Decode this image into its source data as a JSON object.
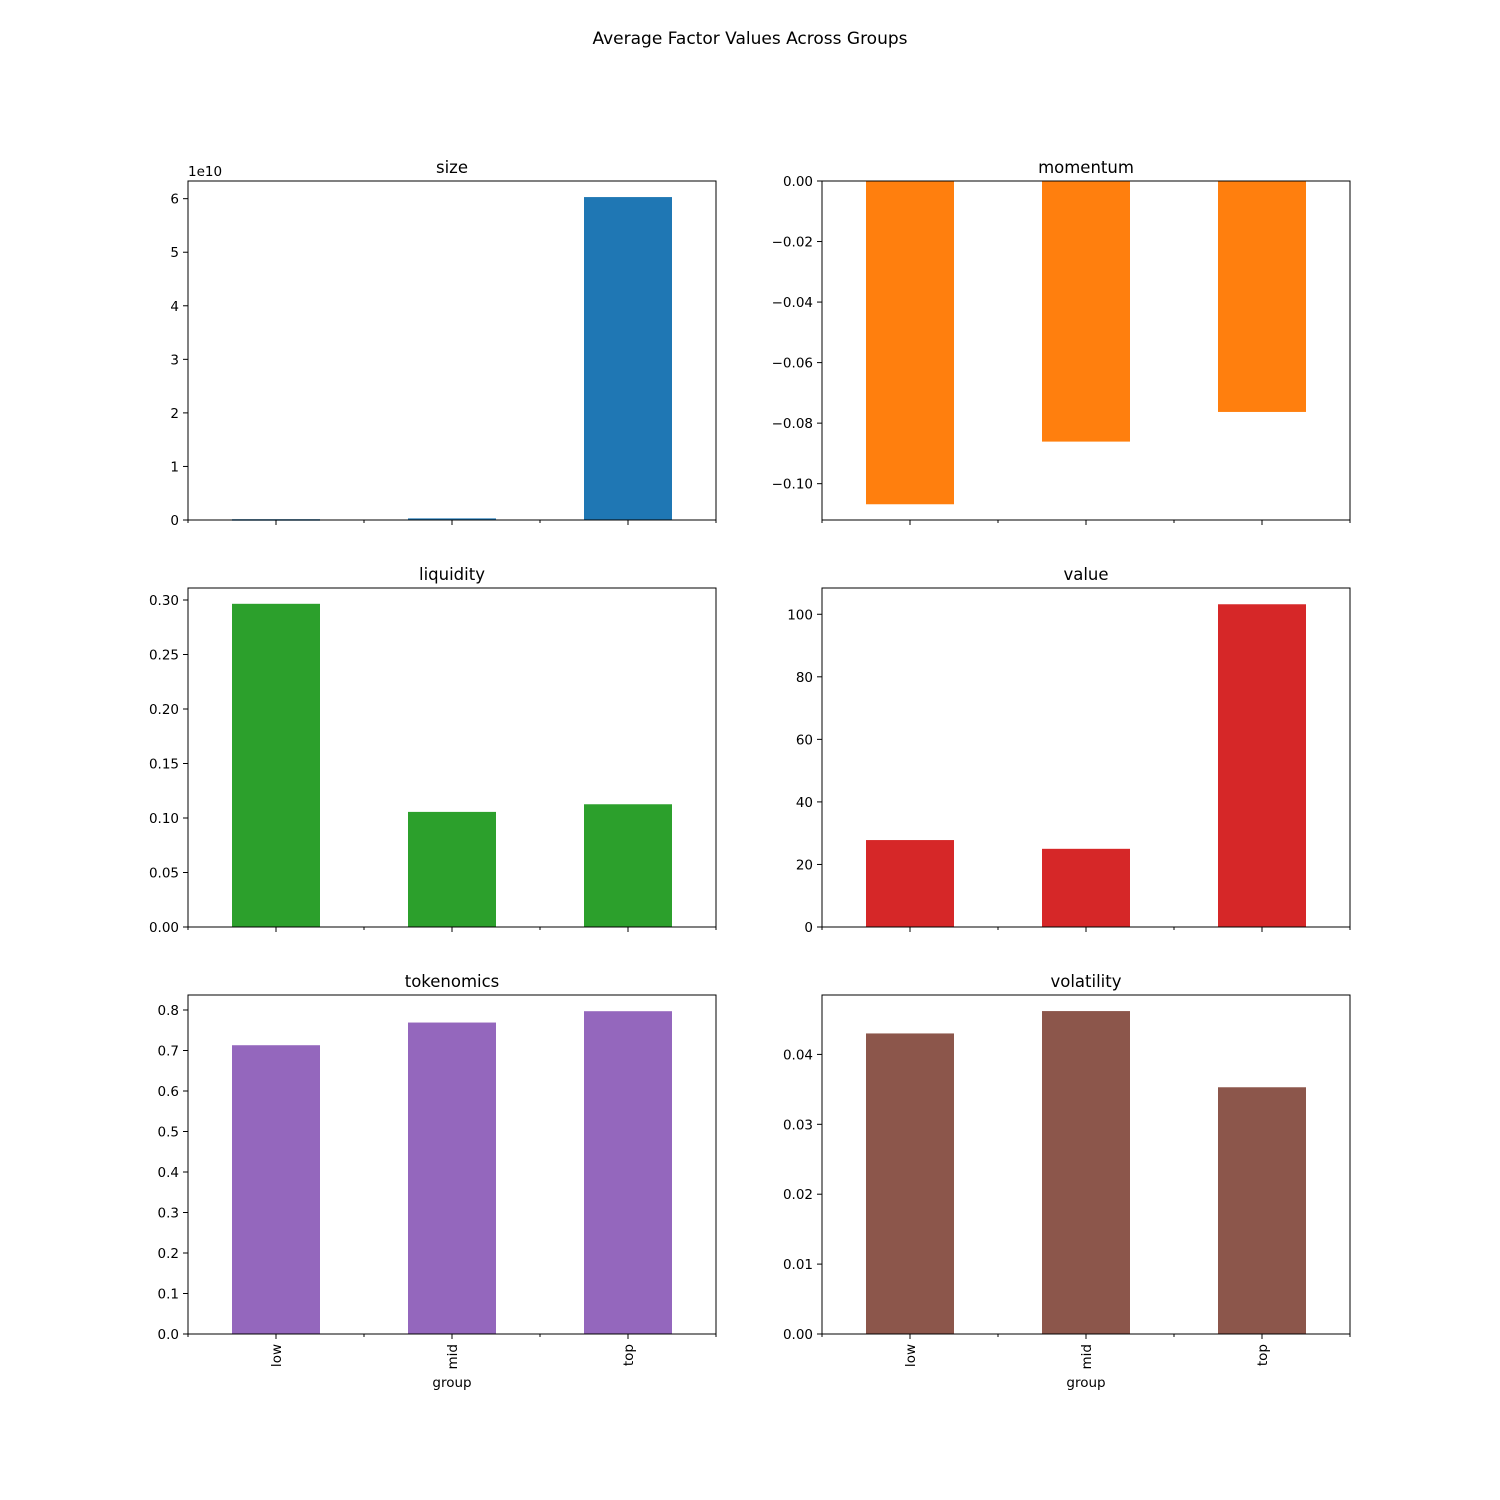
{
  "figure": {
    "title": "Average Factor Values Across Groups",
    "categories": [
      "low",
      "mid",
      "top"
    ],
    "xlabel": "group"
  },
  "chart_data": [
    {
      "type": "bar",
      "title": "size",
      "categories": [
        "low",
        "mid",
        "top"
      ],
      "values": [
        150000000,
        300000000,
        60300000000
      ],
      "ylim": [
        0,
        63300000000
      ],
      "yticks": [
        0,
        10000000000,
        20000000000,
        30000000000,
        40000000000,
        50000000000,
        60000000000
      ],
      "yticklabels": [
        "0",
        "1",
        "2",
        "3",
        "4",
        "5",
        "6"
      ],
      "offset_label": "1e10",
      "xlabel": "",
      "color": "#1f77b4",
      "grid": false
    },
    {
      "type": "bar",
      "title": "momentum",
      "categories": [
        "low",
        "mid",
        "top"
      ],
      "values": [
        -0.1068,
        -0.0861,
        -0.0763
      ],
      "ylim": [
        -0.112,
        0
      ],
      "yticks": [
        -0.1,
        -0.08,
        -0.06,
        -0.04,
        -0.02,
        0.0
      ],
      "yticklabels": [
        "−0.10",
        "−0.08",
        "−0.06",
        "−0.04",
        "−0.02",
        "0.00"
      ],
      "xlabel": "",
      "color": "#ff7f0e",
      "grid": false
    },
    {
      "type": "bar",
      "title": "liquidity",
      "categories": [
        "low",
        "mid",
        "top"
      ],
      "values": [
        0.2965,
        0.1056,
        0.1126
      ],
      "ylim": [
        0,
        0.311
      ],
      "yticks": [
        0.0,
        0.05,
        0.1,
        0.15,
        0.2,
        0.25,
        0.3
      ],
      "yticklabels": [
        "0.00",
        "0.05",
        "0.10",
        "0.15",
        "0.20",
        "0.25",
        "0.30"
      ],
      "xlabel": "",
      "color": "#2ca02c",
      "grid": false
    },
    {
      "type": "bar",
      "title": "value",
      "categories": [
        "low",
        "mid",
        "top"
      ],
      "values": [
        27.8,
        25.0,
        103.2
      ],
      "ylim": [
        0,
        108.4
      ],
      "yticks": [
        0,
        20,
        40,
        60,
        80,
        100
      ],
      "yticklabels": [
        "0",
        "20",
        "40",
        "60",
        "80",
        "100"
      ],
      "xlabel": "",
      "color": "#d62728",
      "grid": false
    },
    {
      "type": "bar",
      "title": "tokenomics",
      "categories": [
        "low",
        "mid",
        "top"
      ],
      "values": [
        0.713,
        0.769,
        0.797
      ],
      "ylim": [
        0,
        0.837
      ],
      "yticks": [
        0.0,
        0.1,
        0.2,
        0.3,
        0.4,
        0.5,
        0.6,
        0.7,
        0.8
      ],
      "yticklabels": [
        "0.0",
        "0.1",
        "0.2",
        "0.3",
        "0.4",
        "0.5",
        "0.6",
        "0.7",
        "0.8"
      ],
      "xlabel": "group",
      "color": "#9467bd",
      "grid": false
    },
    {
      "type": "bar",
      "title": "volatility",
      "categories": [
        "low",
        "mid",
        "top"
      ],
      "values": [
        0.043,
        0.0462,
        0.0353
      ],
      "ylim": [
        0,
        0.0485
      ],
      "yticks": [
        0.0,
        0.01,
        0.02,
        0.03,
        0.04
      ],
      "yticklabels": [
        "0.00",
        "0.01",
        "0.02",
        "0.03",
        "0.04"
      ],
      "xlabel": "group",
      "color": "#8c564b",
      "grid": false
    }
  ]
}
